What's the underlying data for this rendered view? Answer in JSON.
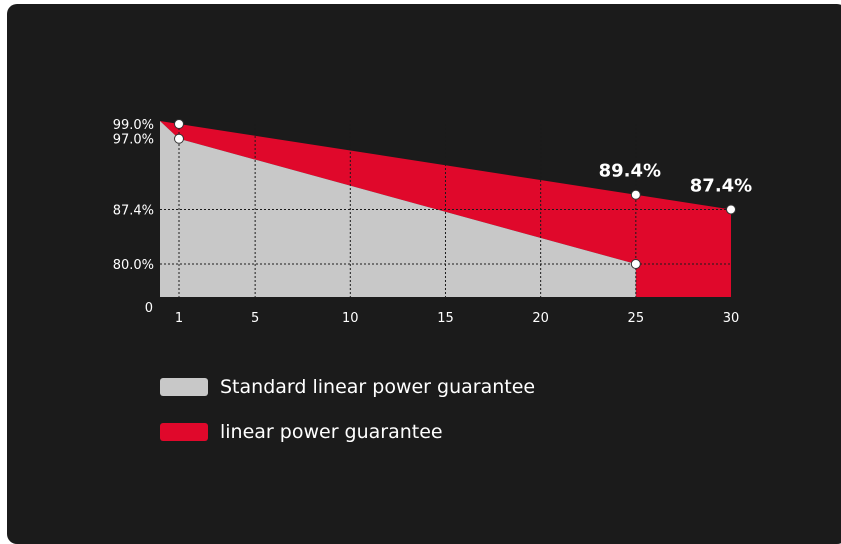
{
  "chart_data": {
    "type": "area",
    "x_ticks": [
      1,
      5,
      10,
      15,
      20,
      25,
      30
    ],
    "y_ticks": [
      {
        "value": 0,
        "label": "0"
      },
      {
        "value": 80.0,
        "label": "80.0%"
      },
      {
        "value": 87.4,
        "label": "87.4%"
      },
      {
        "value": 97.0,
        "label": "97.0%"
      },
      {
        "value": 99.0,
        "label": "99.0%"
      }
    ],
    "series": [
      {
        "name": "Standard linear power guarantee",
        "color": "#c8c8c8",
        "points": [
          [
            1,
            97.0
          ],
          [
            25,
            80.0
          ]
        ]
      },
      {
        "name": "linear power guarantee",
        "color": "#e0082b",
        "points": [
          [
            1,
            99.0
          ],
          [
            25,
            89.4
          ],
          [
            30,
            87.4
          ]
        ]
      }
    ],
    "annotations": [
      {
        "x": 25,
        "y": 89.4,
        "label": "89.4%"
      },
      {
        "x": 30,
        "y": 87.4,
        "label": "87.4%"
      }
    ],
    "grid": true
  },
  "legend": {
    "items": [
      {
        "label": "Standard linear power guarantee",
        "color": "#c8c8c8"
      },
      {
        "label": "linear power guarantee",
        "color": "#e0082b"
      }
    ]
  }
}
